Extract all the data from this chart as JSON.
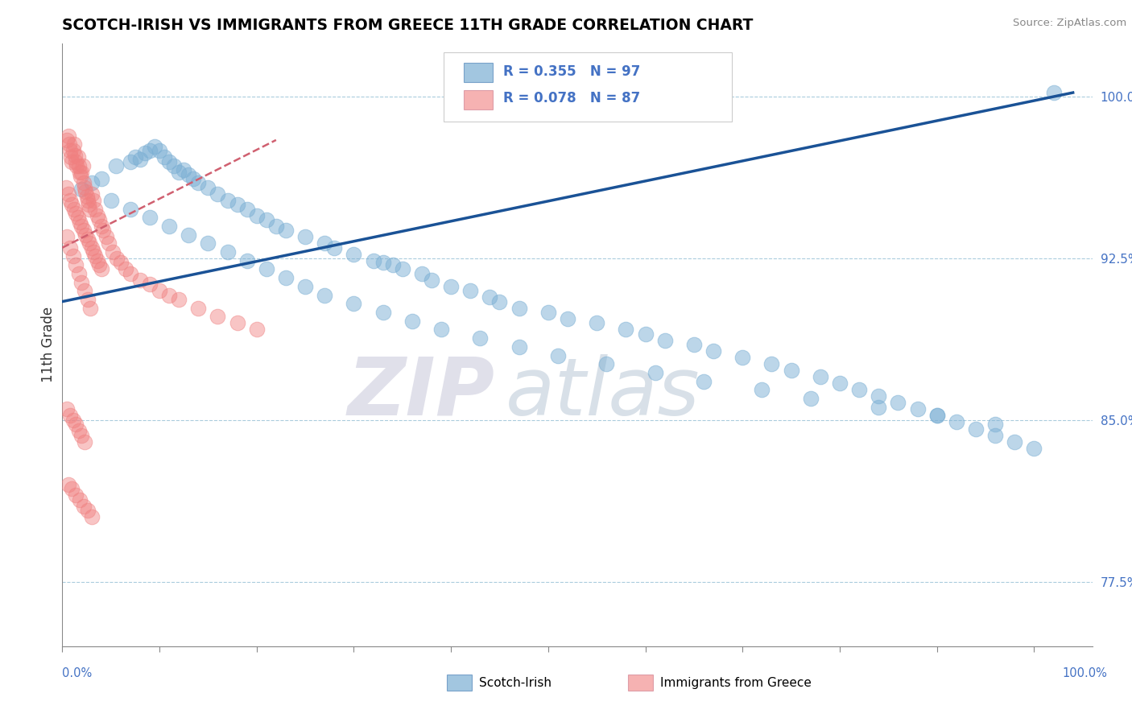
{
  "title": "SCOTCH-IRISH VS IMMIGRANTS FROM GREECE 11TH GRADE CORRELATION CHART",
  "source_text": "Source: ZipAtlas.com",
  "ylabel": "11th Grade",
  "ylim": [
    0.745,
    1.025
  ],
  "xlim": [
    0.0,
    1.06
  ],
  "yticks": [
    0.775,
    0.85,
    0.925,
    1.0
  ],
  "ytick_labels": [
    "77.5%",
    "85.0%",
    "92.5%",
    "100.0%"
  ],
  "blue_R": 0.355,
  "blue_N": 97,
  "pink_R": 0.078,
  "pink_N": 87,
  "blue_color": "#7BAFD4",
  "pink_color": "#F08080",
  "blue_line_color": "#1A5296",
  "pink_line_color": "#D06070",
  "legend_blue_label": "Scotch-Irish",
  "legend_pink_label": "Immigrants from Greece",
  "watermark_zip": "ZIP",
  "watermark_atlas": "atlas",
  "blue_scatter_x": [
    0.02,
    0.03,
    0.04,
    0.055,
    0.07,
    0.075,
    0.08,
    0.085,
    0.09,
    0.095,
    0.1,
    0.105,
    0.11,
    0.115,
    0.12,
    0.125,
    0.13,
    0.135,
    0.14,
    0.15,
    0.16,
    0.17,
    0.18,
    0.19,
    0.2,
    0.21,
    0.22,
    0.23,
    0.25,
    0.27,
    0.28,
    0.3,
    0.32,
    0.33,
    0.34,
    0.35,
    0.37,
    0.38,
    0.4,
    0.42,
    0.44,
    0.45,
    0.47,
    0.5,
    0.52,
    0.55,
    0.58,
    0.6,
    0.62,
    0.65,
    0.67,
    0.7,
    0.73,
    0.75,
    0.78,
    0.8,
    0.82,
    0.84,
    0.86,
    0.88,
    0.9,
    0.92,
    0.94,
    0.96,
    0.98,
    1.0,
    1.02,
    0.05,
    0.07,
    0.09,
    0.11,
    0.13,
    0.15,
    0.17,
    0.19,
    0.21,
    0.23,
    0.25,
    0.27,
    0.3,
    0.33,
    0.36,
    0.39,
    0.43,
    0.47,
    0.51,
    0.56,
    0.61,
    0.66,
    0.72,
    0.77,
    0.84,
    0.9,
    0.96
  ],
  "blue_scatter_y": [
    0.957,
    0.96,
    0.962,
    0.968,
    0.97,
    0.972,
    0.971,
    0.974,
    0.975,
    0.977,
    0.975,
    0.972,
    0.97,
    0.968,
    0.965,
    0.966,
    0.964,
    0.962,
    0.96,
    0.958,
    0.955,
    0.952,
    0.95,
    0.948,
    0.945,
    0.943,
    0.94,
    0.938,
    0.935,
    0.932,
    0.93,
    0.927,
    0.924,
    0.923,
    0.922,
    0.92,
    0.918,
    0.915,
    0.912,
    0.91,
    0.907,
    0.905,
    0.902,
    0.9,
    0.897,
    0.895,
    0.892,
    0.89,
    0.887,
    0.885,
    0.882,
    0.879,
    0.876,
    0.873,
    0.87,
    0.867,
    0.864,
    0.861,
    0.858,
    0.855,
    0.852,
    0.849,
    0.846,
    0.843,
    0.84,
    0.837,
    1.002,
    0.952,
    0.948,
    0.944,
    0.94,
    0.936,
    0.932,
    0.928,
    0.924,
    0.92,
    0.916,
    0.912,
    0.908,
    0.904,
    0.9,
    0.896,
    0.892,
    0.888,
    0.884,
    0.88,
    0.876,
    0.872,
    0.868,
    0.864,
    0.86,
    0.856,
    0.852,
    0.848
  ],
  "pink_scatter_x": [
    0.005,
    0.006,
    0.007,
    0.008,
    0.009,
    0.01,
    0.011,
    0.012,
    0.013,
    0.014,
    0.015,
    0.016,
    0.017,
    0.018,
    0.019,
    0.02,
    0.021,
    0.022,
    0.023,
    0.024,
    0.025,
    0.026,
    0.027,
    0.028,
    0.03,
    0.032,
    0.034,
    0.036,
    0.038,
    0.04,
    0.042,
    0.045,
    0.048,
    0.052,
    0.056,
    0.06,
    0.065,
    0.07,
    0.08,
    0.09,
    0.1,
    0.11,
    0.12,
    0.14,
    0.16,
    0.18,
    0.2,
    0.004,
    0.006,
    0.008,
    0.01,
    0.012,
    0.014,
    0.016,
    0.018,
    0.02,
    0.022,
    0.024,
    0.026,
    0.028,
    0.03,
    0.032,
    0.034,
    0.036,
    0.038,
    0.04,
    0.005,
    0.008,
    0.011,
    0.014,
    0.017,
    0.02,
    0.023,
    0.026,
    0.029,
    0.005,
    0.008,
    0.011,
    0.014,
    0.017,
    0.02,
    0.023,
    0.006,
    0.01,
    0.014,
    0.018,
    0.022,
    0.026,
    0.03
  ],
  "pink_scatter_y": [
    0.98,
    0.982,
    0.978,
    0.975,
    0.972,
    0.97,
    0.975,
    0.978,
    0.973,
    0.97,
    0.968,
    0.972,
    0.968,
    0.965,
    0.963,
    0.965,
    0.968,
    0.96,
    0.958,
    0.956,
    0.954,
    0.952,
    0.95,
    0.948,
    0.955,
    0.952,
    0.948,
    0.945,
    0.943,
    0.94,
    0.938,
    0.935,
    0.932,
    0.928,
    0.925,
    0.923,
    0.92,
    0.918,
    0.915,
    0.913,
    0.91,
    0.908,
    0.906,
    0.902,
    0.898,
    0.895,
    0.892,
    0.958,
    0.955,
    0.952,
    0.95,
    0.948,
    0.946,
    0.944,
    0.942,
    0.94,
    0.938,
    0.936,
    0.934,
    0.932,
    0.93,
    0.928,
    0.926,
    0.924,
    0.922,
    0.92,
    0.935,
    0.93,
    0.926,
    0.922,
    0.918,
    0.914,
    0.91,
    0.906,
    0.902,
    0.855,
    0.852,
    0.85,
    0.848,
    0.845,
    0.843,
    0.84,
    0.82,
    0.818,
    0.815,
    0.813,
    0.81,
    0.808,
    0.805
  ]
}
